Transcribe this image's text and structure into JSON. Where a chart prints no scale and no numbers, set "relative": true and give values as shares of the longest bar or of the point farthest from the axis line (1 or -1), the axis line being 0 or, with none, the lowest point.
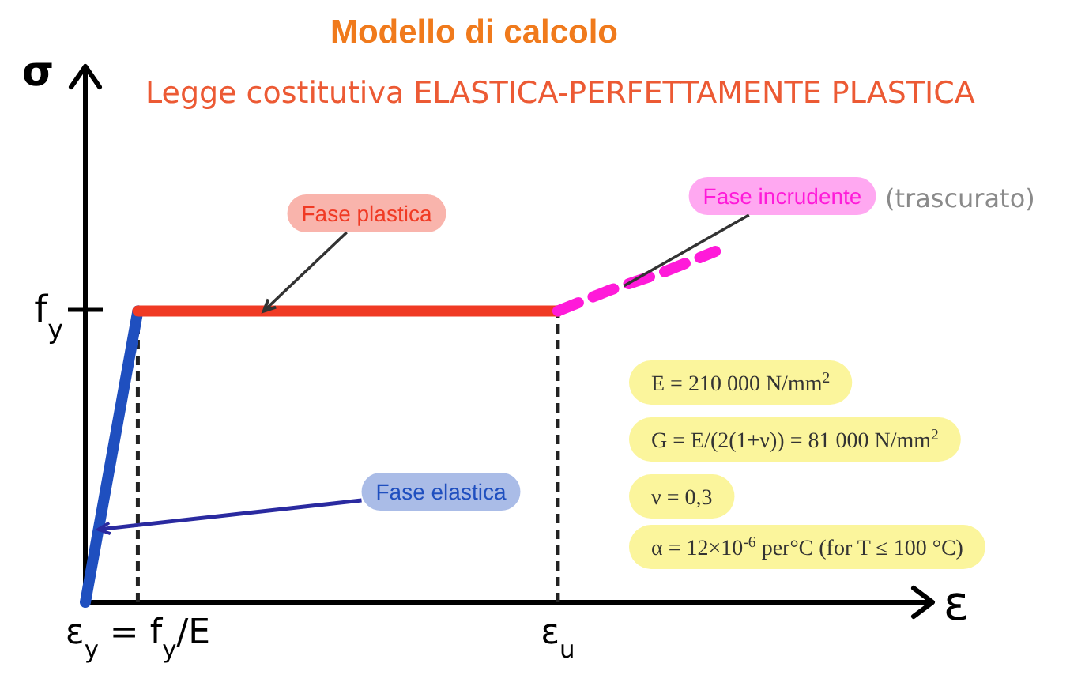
{
  "chart_data": {
    "type": "line",
    "title": "Modello di calcolo",
    "subtitle": "Legge costitutiva ELASTICA-PERFETTAMENTE PLASTICA",
    "xlabel": "ε",
    "ylabel": "σ",
    "relative": true,
    "grid": "x",
    "categories": [
      null,
      "ε$_{y}$ = f$_{y}$/E",
      null,
      null,
      null,
      null,
      null,
      null,
      null,
      "ε$_{u}$",
      null,
      null,
      null
    ],
    "series": [
      {
        "name": "Fase elastica",
        "color": "#1f4fbf",
        "values": [
          0,
          0.83,
          null,
          null,
          null,
          null,
          null,
          null,
          null,
          null,
          null,
          null,
          null
        ]
      },
      {
        "name": "Fase plastica",
        "color": "#f03a24",
        "values": [
          null,
          0.83,
          0.83,
          0.83,
          0.83,
          0.83,
          0.83,
          0.83,
          0.83,
          0.83,
          null,
          null,
          null
        ]
      },
      {
        "name": "Fase incrudente",
        "color": "#ff1ad9",
        "values": [
          null,
          null,
          null,
          null,
          null,
          null,
          null,
          null,
          null,
          0.83,
          0.89,
          0.94,
          1
        ],
        "line_style": "dashed"
      }
    ],
    "annotations": [
      "f$_{y}$",
      "(trascurato)",
      "E = 210 000 N/mm$^{2}$",
      "G = E/(2(1+ν)) = 81 000 N/mm$^{2}$",
      "ν = 0,3",
      "α = 12×10$^{-6}$ per°C  (for T ≤ 100 °C)"
    ]
  }
}
